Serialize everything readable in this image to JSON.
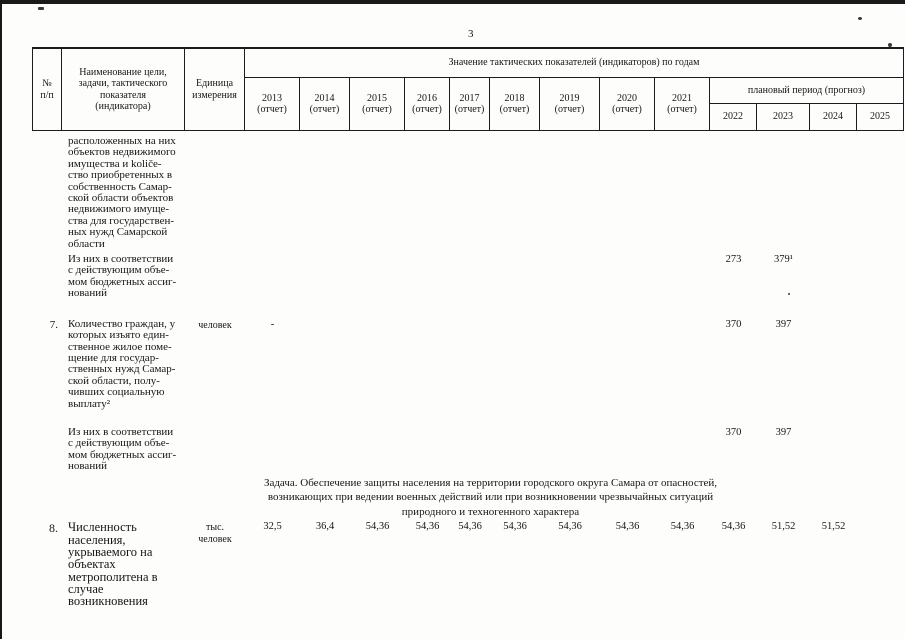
{
  "page_number": "3",
  "header": {
    "num": "№\nп/п",
    "name": "Наименование цели,\nзадачи, тактического\nпоказателя\n(индикатора)",
    "unit": "Единица\nизмерения",
    "values_title": "Значение тактических показателей (индикаторов) по годам",
    "plan_title": "плановый период (прогноз)",
    "report_years": [
      "2013\n(отчет)",
      "2014\n(отчет)",
      "2015\n(отчет)",
      "2016\n(отчет)",
      "2017\n(отчет)",
      "2018\n(отчет)",
      "2019\n(отчет)",
      "2020\n(отчет)",
      "2021\n(отчет)"
    ],
    "plan_years": [
      "2022",
      "2023",
      "2024",
      "2025"
    ]
  },
  "rows": [
    {
      "num": "",
      "name": "расположенных на них\nобъектов недвижимого\nимущества и količе-\nство приобретенных в\nсобственность Самар-\nской области объектов\nнедвижимого имуще-\nства для государствен-\nных нужд Самарской\nобласти",
      "unit": "",
      "values": {}
    },
    {
      "num": "",
      "name": "Из них в соответствии\nс действующим объе-\nмом бюджетных ассиг-\nнований",
      "unit": "",
      "values": {
        "y2022": "273",
        "y2023": "379¹"
      }
    },
    {
      "num": "7.",
      "name": "Количество граждан, у\nкоторых изъято един-\nственное жилое поме-\nщение для государ-\nственных нужд Самар-\nской области, полу-\nчивших социальную\nвыплату²",
      "unit": "человек",
      "values": {
        "y2013": "-",
        "y2022": "370",
        "y2023": "397"
      }
    },
    {
      "num": "",
      "name": "Из них в соответствии\nс действующим объе-\nмом бюджетных ассиг-\nнований",
      "unit": "",
      "values": {
        "y2022": "370",
        "y2023": "397"
      }
    },
    {
      "task": "Задача. Обеспечение защиты населения на территории городского округа Самара от опасностей,\nвозникающих при ведении военных действий или при возникновении чрезвычайных ситуаций\nприродного и техногенного характера"
    },
    {
      "num": "8.",
      "name": "Численность\nнаселения,\nукрываемого на\nобъектах\nметрополитена в\nслучае возникновения",
      "unit": "тыс.\nчеловек",
      "values": {
        "y2013": "32,5",
        "y2014": "36,4",
        "y2015": "54,36",
        "y2016": "54,36",
        "y2017": "54,36",
        "y2018": "54,36",
        "y2019": "54,36",
        "y2020": "54,36",
        "y2021": "54,36",
        "y2022": "54,36",
        "y2023": "51,52",
        "y2024": "51,52"
      }
    }
  ]
}
